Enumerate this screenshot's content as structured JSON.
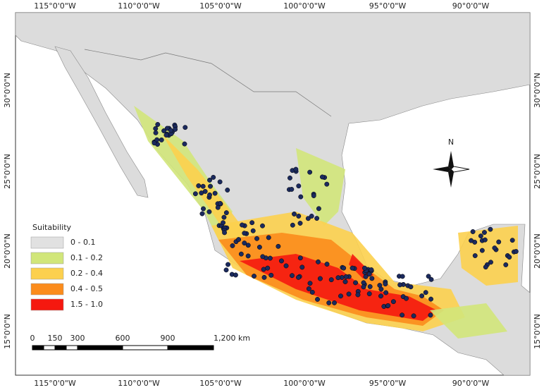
{
  "map": {
    "longitude_labels": [
      "115°0'0\"W",
      "110°0'0\"W",
      "105°0'0\"W",
      "100°0'0\"W",
      "95°0'0\"W",
      "90°0'0\"W"
    ],
    "latitude_labels": [
      "30°0'0\"N",
      "25°0'0\"N",
      "20°0'0\"N",
      "15°0'0\"N"
    ],
    "legend": {
      "title": "Suitability",
      "items": [
        {
          "label": "0  -  0.1",
          "color": "#e1e1e1"
        },
        {
          "label": "0.1  -  0.2",
          "color": "#d1e67a"
        },
        {
          "label": "0.2  -  0.4",
          "color": "#fcd04e"
        },
        {
          "label": "0.4  -  0.5",
          "color": "#fb8c1c"
        },
        {
          "label": "1.5  -  1.0",
          "color": "#f5180f"
        }
      ]
    },
    "scale_bar": {
      "labels": [
        "0",
        "150",
        "300",
        "600",
        "900",
        "1,200 km"
      ]
    },
    "north_arrow": "N"
  }
}
